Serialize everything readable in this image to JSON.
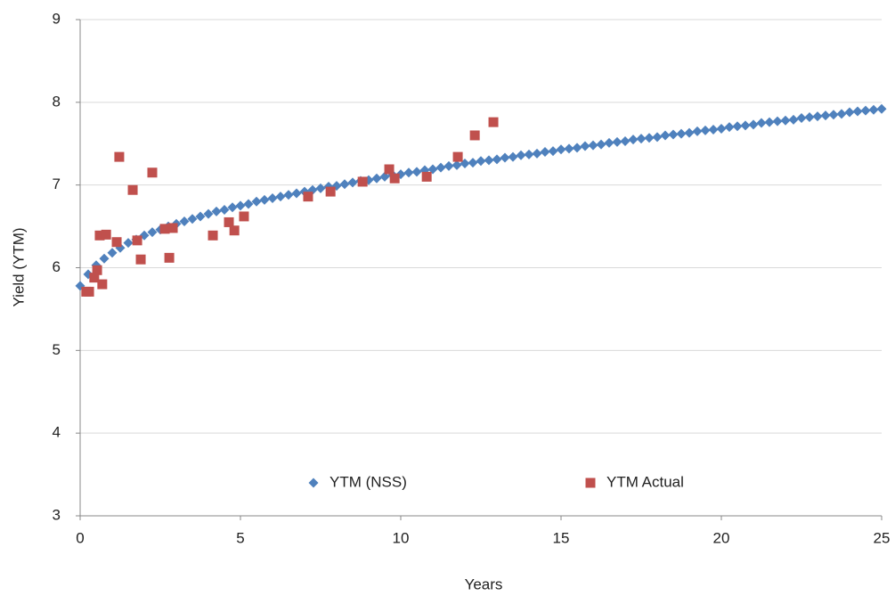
{
  "chart_data": {
    "type": "scatter",
    "xlabel": "Years",
    "ylabel": "Yield (YTM)",
    "xlim": [
      0,
      25
    ],
    "xticks": [
      0,
      5,
      10,
      15,
      20,
      25
    ],
    "ylim": [
      3,
      9
    ],
    "yticks": [
      3,
      4,
      5,
      6,
      7,
      8,
      9
    ],
    "grid": true,
    "legend": "lower center",
    "series": [
      {
        "name": "YTM (NSS)",
        "color": "#4f81bd",
        "marker": "diamond",
        "x": [
          0,
          0.25,
          0.5,
          0.75,
          1,
          1.25,
          1.5,
          1.75,
          2,
          2.25,
          2.5,
          2.75,
          3,
          3.25,
          3.5,
          3.75,
          4,
          4.25,
          4.5,
          4.75,
          5,
          5.25,
          5.5,
          5.75,
          6,
          6.25,
          6.5,
          6.75,
          7,
          7.25,
          7.5,
          7.75,
          8,
          8.25,
          8.5,
          8.75,
          9,
          9.25,
          9.5,
          9.75,
          10,
          10.25,
          10.5,
          10.75,
          11,
          11.25,
          11.5,
          11.75,
          12,
          12.25,
          12.5,
          12.75,
          13,
          13.25,
          13.5,
          13.75,
          14,
          14.25,
          14.5,
          14.75,
          15,
          15.25,
          15.5,
          15.75,
          16,
          16.25,
          16.5,
          16.75,
          17,
          17.25,
          17.5,
          17.75,
          18,
          18.25,
          18.5,
          18.75,
          19,
          19.25,
          19.5,
          19.75,
          20,
          20.25,
          20.5,
          20.75,
          21,
          21.25,
          21.5,
          21.75,
          22,
          22.25,
          22.5,
          22.75,
          23,
          23.25,
          23.5,
          23.75,
          24,
          24.25,
          24.5,
          24.75,
          25
        ],
        "values": [
          5.78,
          5.92,
          6.03,
          6.11,
          6.18,
          6.24,
          6.3,
          6.34,
          6.39,
          6.43,
          6.46,
          6.5,
          6.53,
          6.56,
          6.59,
          6.62,
          6.65,
          6.68,
          6.7,
          6.73,
          6.75,
          6.77,
          6.8,
          6.82,
          6.84,
          6.86,
          6.88,
          6.9,
          6.92,
          6.94,
          6.96,
          6.98,
          6.99,
          7.01,
          7.03,
          7.05,
          7.06,
          7.08,
          7.1,
          7.12,
          7.13,
          7.15,
          7.16,
          7.18,
          7.19,
          7.21,
          7.23,
          7.24,
          7.26,
          7.27,
          7.29,
          7.3,
          7.31,
          7.33,
          7.34,
          7.36,
          7.37,
          7.38,
          7.4,
          7.41,
          7.43,
          7.44,
          7.45,
          7.47,
          7.48,
          7.49,
          7.51,
          7.52,
          7.53,
          7.55,
          7.56,
          7.57,
          7.58,
          7.6,
          7.61,
          7.62,
          7.63,
          7.65,
          7.66,
          7.67,
          7.68,
          7.7,
          7.71,
          7.72,
          7.73,
          7.75,
          7.76,
          7.77,
          7.78,
          7.79,
          7.81,
          7.82,
          7.83,
          7.84,
          7.85,
          7.86,
          7.88,
          7.89,
          7.9,
          7.91,
          7.92
        ]
      },
      {
        "name": "YTM Actual",
        "color": "#c0504d",
        "marker": "square",
        "x": [
          0.19,
          0.28,
          0.44,
          0.53,
          0.61,
          0.69,
          0.81,
          1.14,
          1.22,
          1.64,
          1.78,
          1.89,
          2.25,
          2.64,
          2.78,
          2.89,
          4.14,
          4.64,
          4.81,
          5.11,
          7.11,
          7.81,
          8.81,
          9.64,
          9.81,
          10.81,
          11.78,
          12.31,
          12.89
        ],
        "values": [
          5.71,
          5.71,
          5.88,
          5.97,
          6.39,
          5.8,
          6.4,
          6.31,
          7.34,
          6.94,
          6.33,
          6.1,
          7.15,
          6.47,
          6.12,
          6.48,
          6.39,
          6.55,
          6.45,
          6.62,
          6.86,
          6.92,
          7.04,
          7.19,
          7.08,
          7.1,
          7.34,
          7.6,
          7.76
        ]
      }
    ]
  }
}
